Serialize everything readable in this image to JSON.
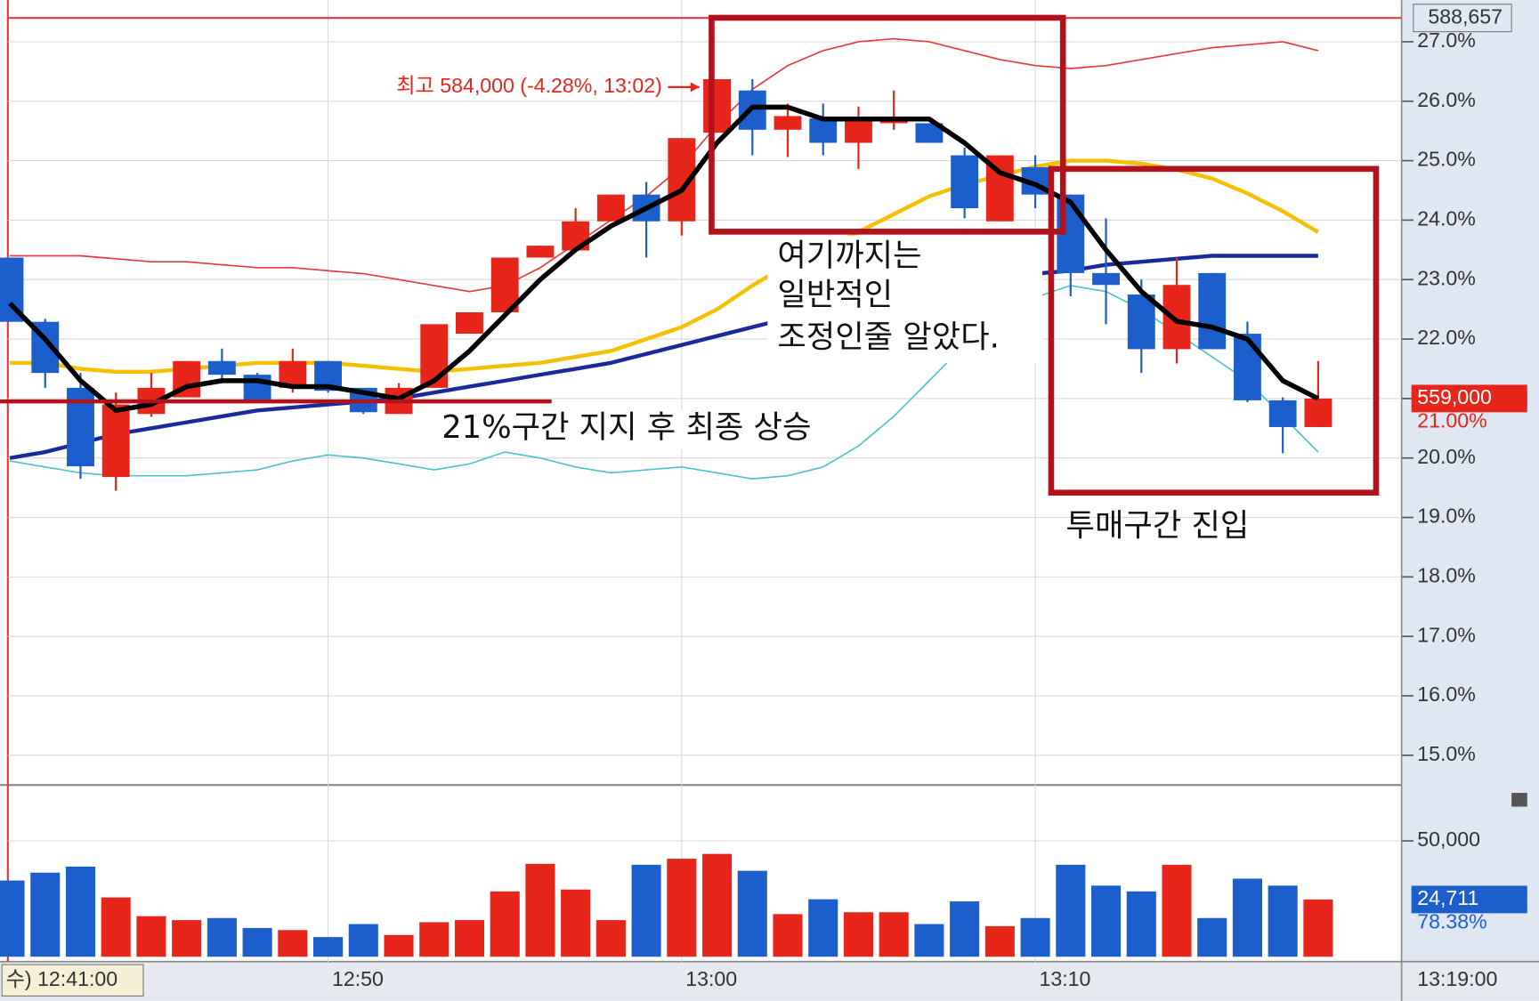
{
  "chart_data": {
    "type": "candlestick",
    "categories": [
      "수) 12:41:00",
      null,
      null,
      null,
      null,
      null,
      null,
      null,
      null,
      "12:50",
      null,
      null,
      null,
      null,
      null,
      null,
      null,
      null,
      null,
      "13:00",
      null,
      null,
      null,
      null,
      null,
      null,
      null,
      null,
      null,
      "13:10",
      null,
      null,
      null,
      null,
      null,
      null,
      null,
      null
    ],
    "x_end_label": "13:19:00",
    "open": [
      23.37,
      22.29,
      21.18,
      19.68,
      20.74,
      21.02,
      21.63,
      21.4,
      21.18,
      21.63,
      21.18,
      20.74,
      21.18,
      22.09,
      22.45,
      23.37,
      23.49,
      23.98,
      24.43,
      23.98,
      25.47,
      26.18,
      25.52,
      25.71,
      25.3,
      25.63,
      25.63,
      25.09,
      23.98,
      24.89,
      24.43,
      23.11,
      22.75,
      21.83,
      23.11,
      22.09,
      20.97,
      20.52
    ],
    "high": [
      23.37,
      22.34,
      21.43,
      21.1,
      21.43,
      21.63,
      21.84,
      21.43,
      21.84,
      21.63,
      21.18,
      21.26,
      22.25,
      22.45,
      23.37,
      23.57,
      24.2,
      24.43,
      24.64,
      25.38,
      26.37,
      26.37,
      25.96,
      25.96,
      25.91,
      26.18,
      25.63,
      25.22,
      25.09,
      25.09,
      24.43,
      24.03,
      23.0,
      23.37,
      23.11,
      22.29,
      21.02,
      21.63
    ],
    "low": [
      22.29,
      21.18,
      19.65,
      19.45,
      20.69,
      21.02,
      21.26,
      20.97,
      21.1,
      21.1,
      20.74,
      20.74,
      21.18,
      22.09,
      22.45,
      23.37,
      23.49,
      23.98,
      23.37,
      23.74,
      25.47,
      25.09,
      25.06,
      25.09,
      24.86,
      25.52,
      25.3,
      24.03,
      23.98,
      24.2,
      22.72,
      22.25,
      21.43,
      21.59,
      21.83,
      20.94,
      20.08,
      20.52
    ],
    "close": [
      22.29,
      21.43,
      19.86,
      20.9,
      21.18,
      21.63,
      21.4,
      20.97,
      21.63,
      21.13,
      20.77,
      21.18,
      22.25,
      22.45,
      23.37,
      23.57,
      23.98,
      24.43,
      23.98,
      25.38,
      26.37,
      25.52,
      25.75,
      25.3,
      25.71,
      25.71,
      25.3,
      24.2,
      25.09,
      24.43,
      23.11,
      22.91,
      21.83,
      22.91,
      21.83,
      20.97,
      20.52,
      21.0
    ],
    "up_color": "#e8251b",
    "down_color": "#1c5fcc",
    "ylim": [
      14.5,
      27.7
    ],
    "yticks": [
      {
        "value": 15,
        "label": "15.0%"
      },
      {
        "value": 16,
        "label": "16.0%"
      },
      {
        "value": 17,
        "label": "17.0%"
      },
      {
        "value": 18,
        "label": "18.0%"
      },
      {
        "value": 19,
        "label": "19.0%"
      },
      {
        "value": 20,
        "label": "20.0%"
      },
      {
        "value": 21,
        "label": "21.0%"
      },
      {
        "value": 22,
        "label": "22.0%"
      },
      {
        "value": 23,
        "label": "23.0%"
      },
      {
        "value": 24,
        "label": "24.0%"
      },
      {
        "value": 25,
        "label": "25.0%"
      },
      {
        "value": 26,
        "label": "26.0%"
      },
      {
        "value": 27,
        "label": "27.0%"
      }
    ],
    "grid": true,
    "overlays": [
      {
        "color": "#e83a3a",
        "values": [
          23.4,
          23.4,
          23.4,
          23.35,
          23.3,
          23.3,
          23.25,
          23.2,
          23.2,
          23.15,
          23.1,
          23.0,
          22.9,
          22.8,
          22.9,
          23.2,
          23.6,
          24.0,
          24.4,
          24.9,
          25.6,
          26.2,
          26.6,
          26.85,
          27.0,
          27.05,
          27.0,
          26.85,
          26.7,
          26.6,
          26.55,
          26.6,
          26.7,
          26.8,
          26.9,
          26.95,
          27.0,
          26.85
        ]
      },
      {
        "color": "#4cc3cc",
        "values": [
          19.95,
          19.85,
          19.75,
          19.7,
          19.7,
          19.7,
          19.75,
          19.8,
          19.95,
          20.05,
          20.0,
          19.9,
          19.8,
          19.9,
          20.1,
          20.0,
          19.85,
          19.75,
          19.8,
          19.85,
          19.75,
          19.65,
          19.7,
          19.85,
          20.2,
          20.7,
          21.3,
          21.9,
          22.4,
          22.7,
          22.9,
          22.8,
          22.5,
          22.1,
          21.7,
          21.3,
          20.7,
          20.1
        ]
      },
      {
        "color": "#f5c000",
        "values": [
          21.6,
          21.6,
          21.5,
          21.45,
          21.45,
          21.5,
          21.55,
          21.6,
          21.6,
          21.6,
          21.55,
          21.5,
          21.45,
          21.5,
          21.55,
          21.6,
          21.7,
          21.8,
          22.0,
          22.2,
          22.5,
          22.9,
          23.25,
          23.5,
          23.8,
          24.1,
          24.4,
          24.6,
          24.75,
          24.9,
          25.0,
          25.0,
          24.95,
          24.85,
          24.7,
          24.45,
          24.15,
          23.8
        ]
      },
      {
        "color": "#1a2a9c",
        "values": [
          20.0,
          20.1,
          20.25,
          20.4,
          20.5,
          20.6,
          20.7,
          20.8,
          20.85,
          20.9,
          20.95,
          21.0,
          21.1,
          21.2,
          21.3,
          21.4,
          21.5,
          21.6,
          21.75,
          21.9,
          22.05,
          22.2,
          22.35,
          22.5,
          22.6,
          22.7,
          22.8,
          22.9,
          23.0,
          23.1,
          23.15,
          23.25,
          23.3,
          23.35,
          23.4,
          23.4,
          23.4,
          23.4
        ]
      },
      {
        "color": "#000000",
        "values": [
          22.6,
          22.0,
          21.3,
          20.8,
          20.9,
          21.2,
          21.3,
          21.3,
          21.2,
          21.2,
          21.1,
          21.0,
          21.3,
          21.8,
          22.4,
          23.0,
          23.5,
          23.9,
          24.2,
          24.5,
          25.3,
          25.9,
          25.9,
          25.7,
          25.7,
          25.7,
          25.7,
          25.3,
          24.8,
          24.6,
          24.3,
          23.5,
          22.8,
          22.3,
          22.2,
          22.0,
          21.3,
          21.0
        ]
      }
    ],
    "upper_line": {
      "value": 27.4,
      "label": "588,657"
    },
    "last_price_label": "559,000",
    "last_pct_label": "21.00%",
    "high_annotation": "최고 584,000 (-4.28%, 13:02)",
    "volume": {
      "values": [
        32900,
        36300,
        38900,
        25600,
        17500,
        15800,
        16700,
        12400,
        11500,
        8500,
        14100,
        9400,
        14900,
        15800,
        28200,
        40100,
        29000,
        15800,
        39700,
        42300,
        44400,
        37100,
        18400,
        24800,
        19200,
        19200,
        14100,
        23900,
        13200,
        16700,
        39700,
        30700,
        28200,
        39700,
        16700,
        33700,
        30700,
        24711
      ],
      "ylim": [
        0,
        72000
      ],
      "yticks": [
        {
          "value": 50000,
          "label": "50,000"
        }
      ],
      "last_label": "24,711",
      "ratio_label": "78.38%"
    },
    "annotations": {
      "note_top": [
        "여기까지는",
        "일반적인",
        "조정인줄 알았다."
      ],
      "note_support": "21%구간 지지 후 최종 상승",
      "note_panic": "투매구간 진입"
    }
  }
}
